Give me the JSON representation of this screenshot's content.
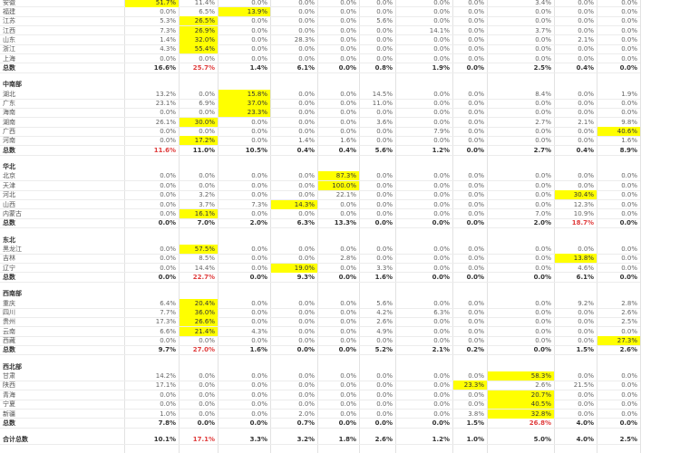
{
  "sections": [
    {
      "rows": [
        {
          "label": "安徽",
          "cells": [
            {
              "text": "51.7%",
              "fill": "#ffff00"
            },
            "11.4%",
            "0.0%",
            "0.0%",
            "0.0%",
            "0.0%",
            "0.0%",
            "0.0%",
            "3.4%",
            "0.0%",
            "0.0%"
          ]
        },
        {
          "label": "福建",
          "cells": [
            "0.0%",
            "6.5%",
            {
              "text": "13.9%",
              "fill": "#ffff00"
            },
            "0.0%",
            "0.0%",
            "0.0%",
            "0.0%",
            "0.0%",
            "0.0%",
            "0.0%",
            "0.0%"
          ]
        },
        {
          "label": "江苏",
          "cells": [
            "5.3%",
            {
              "text": "26.5%",
              "fill": "#ffff00"
            },
            "0.0%",
            "0.0%",
            "0.0%",
            "5.6%",
            "0.0%",
            "0.0%",
            "0.0%",
            "0.0%",
            "0.0%"
          ]
        },
        {
          "label": "江西",
          "cells": [
            "7.3%",
            {
              "text": "26.9%",
              "fill": "#ffff00"
            },
            "0.0%",
            "0.0%",
            "0.0%",
            "0.0%",
            "14.1%",
            "0.0%",
            "3.7%",
            "0.0%",
            "0.0%"
          ]
        },
        {
          "label": "山东",
          "cells": [
            "1.4%",
            {
              "text": "32.0%",
              "fill": "#ffff00"
            },
            "0.0%",
            "28.3%",
            "0.0%",
            "0.0%",
            "0.0%",
            "0.0%",
            "0.0%",
            "2.1%",
            "0.0%"
          ]
        },
        {
          "label": "浙江",
          "cells": [
            "4.3%",
            {
              "text": "55.4%",
              "fill": "#ffff00"
            },
            "0.0%",
            "0.0%",
            "0.0%",
            "0.0%",
            "0.0%",
            "0.0%",
            "0.0%",
            "0.0%",
            "0.0%"
          ]
        },
        {
          "label": "上海",
          "cells": [
            "0.0%",
            "0.0%",
            "0.0%",
            "0.0%",
            "0.0%",
            "0.0%",
            "0.0%",
            "0.0%",
            "0.0%",
            "0.0%",
            "0.0%"
          ]
        },
        {
          "label": "总数",
          "total": true,
          "cells": [
            "16.6%",
            {
              "text": "25.7%",
              "color": "#e03c3c"
            },
            "1.4%",
            "6.1%",
            "0.0%",
            "0.8%",
            "1.9%",
            "0.0%",
            "2.5%",
            "0.4%",
            "0.0%"
          ]
        }
      ]
    },
    {
      "title": "中南部",
      "rows": [
        {
          "label": "湖北",
          "cells": [
            "13.2%",
            "0.0%",
            {
              "text": "15.8%",
              "fill": "#ffff00"
            },
            "0.0%",
            "0.0%",
            "14.5%",
            "0.0%",
            "0.0%",
            "8.4%",
            "0.0%",
            "1.9%"
          ]
        },
        {
          "label": "广东",
          "cells": [
            "23.1%",
            "6.9%",
            {
              "text": "37.0%",
              "fill": "#ffff00"
            },
            "0.0%",
            "0.0%",
            "11.0%",
            "0.0%",
            "0.0%",
            "0.0%",
            "0.0%",
            "0.0%"
          ]
        },
        {
          "label": "海南",
          "cells": [
            "0.0%",
            "0.0%",
            {
              "text": "23.3%",
              "fill": "#ffff00"
            },
            "0.0%",
            "0.0%",
            "0.0%",
            "0.0%",
            "0.0%",
            "0.0%",
            "0.0%",
            "0.0%"
          ]
        },
        {
          "label": "湖南",
          "cells": [
            "26.1%",
            {
              "text": "30.0%",
              "fill": "#ffff00"
            },
            "0.0%",
            "0.0%",
            "0.0%",
            "3.6%",
            "0.0%",
            "0.0%",
            "2.7%",
            "2.1%",
            "9.8%"
          ]
        },
        {
          "label": "广西",
          "cells": [
            "0.0%",
            "0.0%",
            "0.0%",
            "0.0%",
            "0.0%",
            "0.0%",
            "7.9%",
            "0.0%",
            "0.0%",
            "0.0%",
            {
              "text": "40.6%",
              "fill": "#ffff00"
            }
          ]
        },
        {
          "label": "河南",
          "cells": [
            "0.0%",
            {
              "text": "17.2%",
              "fill": "#ffff00"
            },
            "0.0%",
            "1.4%",
            "1.6%",
            "0.0%",
            "0.0%",
            "0.0%",
            "0.0%",
            "0.0%",
            "1.6%"
          ]
        },
        {
          "label": "总数",
          "total": true,
          "cells": [
            {
              "text": "11.6%",
              "color": "#e03c3c"
            },
            "11.0%",
            "10.5%",
            "0.4%",
            "0.4%",
            "5.6%",
            "1.2%",
            "0.0%",
            "2.7%",
            "0.4%",
            "8.9%"
          ]
        }
      ]
    },
    {
      "title": "华北",
      "rows": [
        {
          "label": "北京",
          "cells": [
            "0.0%",
            "0.0%",
            "0.0%",
            "0.0%",
            {
              "text": "87.3%",
              "fill": "#ffff00"
            },
            "0.0%",
            "0.0%",
            "0.0%",
            "0.0%",
            "0.0%",
            "0.0%"
          ]
        },
        {
          "label": "天津",
          "cells": [
            "0.0%",
            "0.0%",
            "0.0%",
            "0.0%",
            {
              "text": "100.0%",
              "fill": "#ffff00"
            },
            "0.0%",
            "0.0%",
            "0.0%",
            "0.0%",
            "0.0%",
            "0.0%"
          ]
        },
        {
          "label": "河北",
          "cells": [
            "0.0%",
            "3.2%",
            "0.0%",
            "0.0%",
            "22.1%",
            "0.0%",
            "0.0%",
            "0.0%",
            "0.0%",
            {
              "text": "30.4%",
              "fill": "#ffff00"
            },
            "0.0%"
          ]
        },
        {
          "label": "山西",
          "cells": [
            "0.0%",
            "3.7%",
            "7.3%",
            {
              "text": "14.3%",
              "fill": "#ffff00"
            },
            "0.0%",
            "0.0%",
            "0.0%",
            "0.0%",
            "0.0%",
            "12.3%",
            "0.0%"
          ]
        },
        {
          "label": "内蒙古",
          "cells": [
            "0.0%",
            {
              "text": "16.1%",
              "fill": "#ffff00"
            },
            "0.0%",
            "0.0%",
            "0.0%",
            "0.0%",
            "0.0%",
            "0.0%",
            "7.0%",
            "10.9%",
            "0.0%"
          ]
        },
        {
          "label": "总数",
          "total": true,
          "cells": [
            "0.0%",
            "7.0%",
            "2.0%",
            "6.3%",
            "13.3%",
            "0.0%",
            "0.0%",
            "0.0%",
            "2.0%",
            {
              "text": "18.7%",
              "color": "#e03c3c"
            },
            "0.0%"
          ]
        }
      ]
    },
    {
      "title": "东北",
      "rows": [
        {
          "label": "黑龙江",
          "cells": [
            "0.0%",
            {
              "text": "57.5%",
              "fill": "#ffff00"
            },
            "0.0%",
            "0.0%",
            "0.0%",
            "0.0%",
            "0.0%",
            "0.0%",
            "0.0%",
            "0.0%",
            "0.0%"
          ]
        },
        {
          "label": "吉林",
          "cells": [
            "0.0%",
            "8.5%",
            "0.0%",
            "0.0%",
            "2.8%",
            "0.0%",
            "0.0%",
            "0.0%",
            "0.0%",
            {
              "text": "13.8%",
              "fill": "#ffff00"
            },
            "0.0%"
          ]
        },
        {
          "label": "辽宁",
          "cells": [
            "0.0%",
            "14.4%",
            "0.0%",
            {
              "text": "19.0%",
              "fill": "#ffff00"
            },
            "0.0%",
            "3.3%",
            "0.0%",
            "0.0%",
            "0.0%",
            "4.6%",
            "0.0%"
          ]
        },
        {
          "label": "总数",
          "total": true,
          "cells": [
            "0.0%",
            {
              "text": "22.7%",
              "color": "#e03c3c"
            },
            "0.0%",
            "9.3%",
            "0.0%",
            "1.6%",
            "0.0%",
            "0.0%",
            "0.0%",
            "6.1%",
            "0.0%"
          ]
        }
      ]
    },
    {
      "title": "西南部",
      "rows": [
        {
          "label": "重庆",
          "cells": [
            "6.4%",
            {
              "text": "20.4%",
              "fill": "#ffff00"
            },
            "0.0%",
            "0.0%",
            "0.0%",
            "5.6%",
            "0.0%",
            "0.0%",
            "0.0%",
            "9.2%",
            "2.8%"
          ]
        },
        {
          "label": "四川",
          "cells": [
            "7.7%",
            {
              "text": "36.0%",
              "fill": "#ffff00"
            },
            "0.0%",
            "0.0%",
            "0.0%",
            "4.2%",
            "6.3%",
            "0.0%",
            "0.0%",
            "0.0%",
            "2.6%"
          ]
        },
        {
          "label": "贵州",
          "cells": [
            "17.3%",
            {
              "text": "26.6%",
              "fill": "#ffff00"
            },
            "0.0%",
            "0.0%",
            "0.0%",
            "2.6%",
            "0.0%",
            "0.0%",
            "0.0%",
            "0.0%",
            "2.5%"
          ]
        },
        {
          "label": "云南",
          "cells": [
            "6.6%",
            {
              "text": "21.4%",
              "fill": "#ffff00"
            },
            "4.3%",
            "0.0%",
            "0.0%",
            "4.9%",
            "0.0%",
            "0.0%",
            "0.0%",
            "0.0%",
            "0.0%"
          ]
        },
        {
          "label": "西藏",
          "cells": [
            "0.0%",
            "0.0%",
            "0.0%",
            "0.0%",
            "0.0%",
            "0.0%",
            "0.0%",
            "0.0%",
            "0.0%",
            "0.0%",
            {
              "text": "27.3%",
              "fill": "#ffff00"
            }
          ]
        },
        {
          "label": "总数",
          "total": true,
          "cells": [
            "9.7%",
            {
              "text": "27.0%",
              "color": "#e03c3c"
            },
            "1.6%",
            "0.0%",
            "0.0%",
            "5.2%",
            "2.1%",
            "0.2%",
            "0.0%",
            "1.5%",
            "2.6%"
          ]
        }
      ]
    },
    {
      "title": "西北部",
      "rows": [
        {
          "label": "甘肃",
          "cells": [
            "14.2%",
            "0.0%",
            "0.0%",
            "0.0%",
            "0.0%",
            "0.0%",
            "0.0%",
            "0.0%",
            {
              "text": "58.3%",
              "fill": "#ffff00"
            },
            "0.0%",
            "0.0%"
          ]
        },
        {
          "label": "陕西",
          "cells": [
            "17.1%",
            "0.0%",
            "0.0%",
            "0.0%",
            "0.0%",
            "0.0%",
            "0.0%",
            {
              "text": "23.3%",
              "fill": "#ffff00"
            },
            "2.6%",
            "21.5%",
            "0.0%"
          ]
        },
        {
          "label": "青海",
          "cells": [
            "0.0%",
            "0.0%",
            "0.0%",
            "0.0%",
            "0.0%",
            "0.0%",
            "0.0%",
            "0.0%",
            {
              "text": "20.7%",
              "fill": "#ffff00"
            },
            "0.0%",
            "0.0%"
          ]
        },
        {
          "label": "宁夏",
          "cells": [
            "0.0%",
            "0.0%",
            "0.0%",
            "0.0%",
            "0.0%",
            "0.0%",
            "0.0%",
            "0.0%",
            {
              "text": "40.5%",
              "fill": "#ffff00"
            },
            "0.0%",
            "0.0%"
          ]
        },
        {
          "label": "新疆",
          "cells": [
            "1.0%",
            "0.0%",
            "0.0%",
            "2.0%",
            "0.0%",
            "0.0%",
            "0.0%",
            "3.8%",
            {
              "text": "32.8%",
              "fill": "#ffff00"
            },
            "0.0%",
            "0.0%"
          ]
        },
        {
          "label": "总数",
          "total": true,
          "cells": [
            "7.8%",
            "0.0%",
            "0.0%",
            "0.7%",
            "0.0%",
            "0.0%",
            "0.0%",
            "1.5%",
            {
              "text": "26.8%",
              "color": "#e03c3c"
            },
            "4.0%",
            "0.0%"
          ]
        }
      ]
    },
    {
      "rows": [
        {
          "label": "合计总数",
          "total": true,
          "cells": [
            "10.1%",
            {
              "text": "17.1%",
              "color": "#e03c3c"
            },
            "3.3%",
            "3.2%",
            "1.8%",
            "2.6%",
            "1.2%",
            "1.0%",
            "5.0%",
            "4.0%",
            "2.5%"
          ]
        }
      ]
    }
  ]
}
